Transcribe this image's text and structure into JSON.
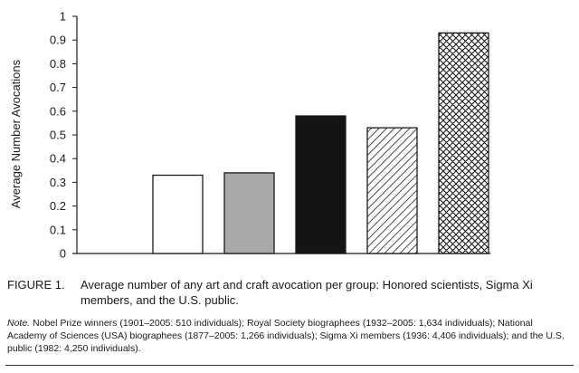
{
  "chart_data": {
    "type": "bar",
    "title": "",
    "xlabel": "",
    "ylabel": "Average Number Avocations",
    "ylim": [
      0,
      1
    ],
    "yticks": [
      "0",
      "0.1",
      "0.2",
      "0.3",
      "0.4",
      "0.5",
      "0.6",
      "0.7",
      "0.8",
      "0.9",
      "1"
    ],
    "grid": false,
    "legend": "none",
    "values": [
      0.33,
      0.34,
      0.58,
      0.53,
      0.93
    ],
    "bar_fills": [
      "white",
      "lightgray",
      "black",
      "diagonal-hatch",
      "crosshatch"
    ]
  },
  "figure": {
    "label": "FIGURE 1.",
    "caption": "Average number of any art and craft avocation per group: Honored scientists, Sigma Xi members, and the U.S. public."
  },
  "note": {
    "label": "Note.",
    "text": "Nobel Prize winners (1901–2005: 510 individuals); Royal Society biographees (1932–2005: 1,634 individuals); National Academy of Sciences (USA) biographees (1877–2005: 1,266 individuals); Sigma Xi members (1936: 4,406 individuals); and the U.S. public (1982: 4,250 individuals)."
  }
}
